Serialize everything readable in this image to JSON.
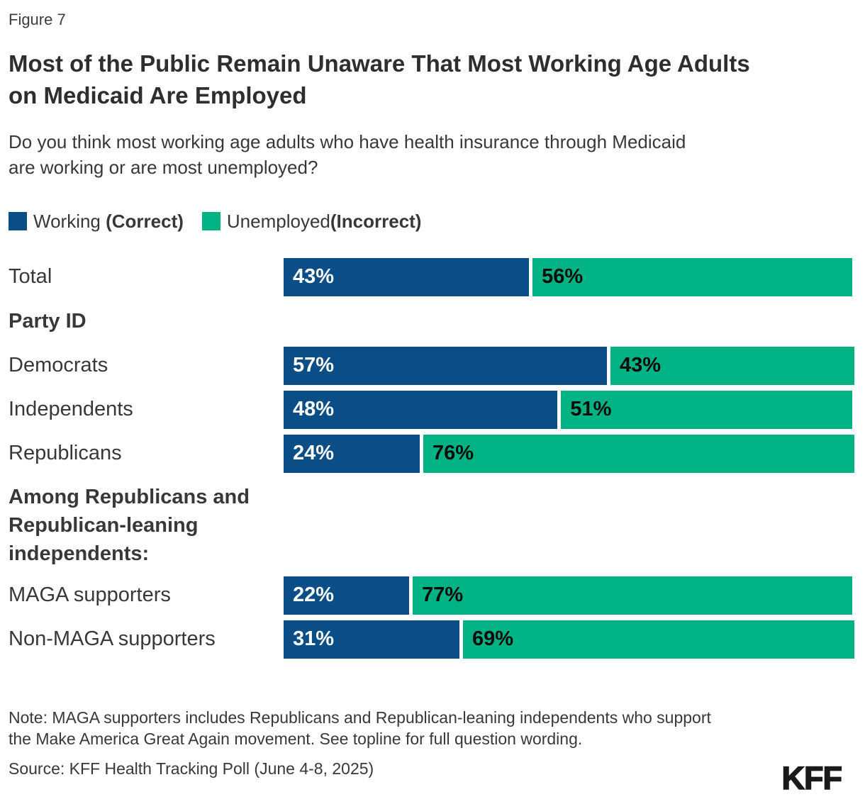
{
  "figure_label": "Figure 7",
  "title": "Most of the Public Remain Unaware That Most Working Age Adults on Medicaid Are Employed",
  "question": "Do you think most working age adults who have health insurance through Medicaid are working or are most unemployed?",
  "legend": {
    "working": {
      "text": "Working ",
      "bold": "(Correct)",
      "color": "#0A4D87"
    },
    "unemployed": {
      "text": "Unemployed",
      "bold": "(Incorrect)",
      "color": "#00B284"
    }
  },
  "chart_data": {
    "type": "bar",
    "stacked": true,
    "orientation": "horizontal",
    "value_unit": "%",
    "xlim": [
      0,
      100
    ],
    "grid": false,
    "legend_position": "top",
    "value_labels": "inside-left",
    "categories": [
      "Total",
      "Democrats",
      "Independents",
      "Republicans",
      "MAGA supporters",
      "Non-MAGA supporters"
    ],
    "series": [
      {
        "name": "Working (Correct)",
        "color": "#0A4D87",
        "values": [
          43,
          57,
          48,
          24,
          22,
          31
        ]
      },
      {
        "name": "Unemployed(Incorrect)",
        "color": "#00B284",
        "values": [
          56,
          43,
          51,
          76,
          77,
          69
        ]
      }
    ],
    "rows": [
      {
        "kind": "bar",
        "label": "Total",
        "working": 43,
        "unemployed": 56
      },
      {
        "kind": "section",
        "label": "Party ID"
      },
      {
        "kind": "bar",
        "label": "Democrats",
        "working": 57,
        "unemployed": 43
      },
      {
        "kind": "bar",
        "label": "Independents",
        "working": 48,
        "unemployed": 51
      },
      {
        "kind": "bar",
        "label": "Republicans",
        "working": 24,
        "unemployed": 76
      },
      {
        "kind": "section",
        "label": "Among Republicans and Republican-leaning independents:"
      },
      {
        "kind": "bar",
        "label": "MAGA supporters",
        "working": 22,
        "unemployed": 77
      },
      {
        "kind": "bar",
        "label": "Non-MAGA supporters",
        "working": 31,
        "unemployed": 69
      }
    ]
  },
  "note": "Note: MAGA supporters includes Republicans and Republican-leaning independents who support the Make America Great Again movement. See topline for full question wording.",
  "source": "Source: KFF Health Tracking Poll (June 4-8, 2025)",
  "logo": "KFF"
}
